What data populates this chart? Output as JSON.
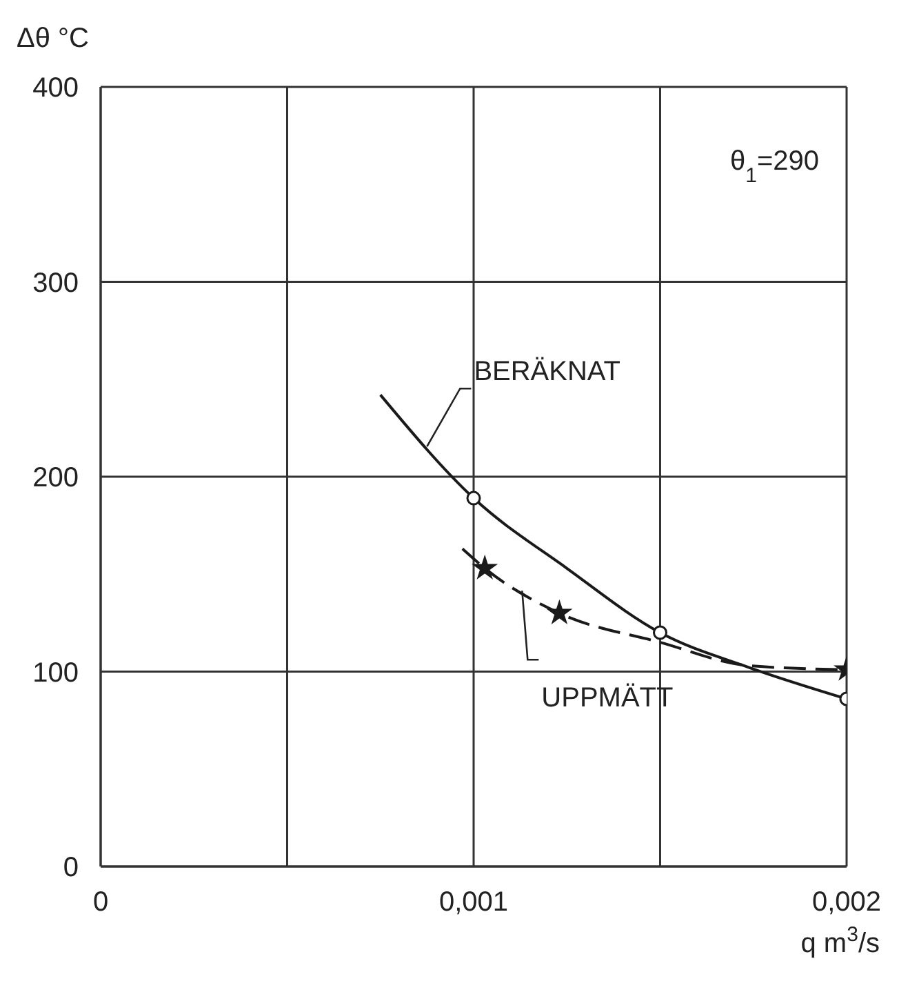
{
  "chart_data": {
    "type": "line",
    "xlabel": "q m$^{3}$/s",
    "ylabel": "Δθ °C",
    "annotations": [
      "θ$_{1}$=290"
    ],
    "xlim": [
      0,
      0.002
    ],
    "xticks": [
      {
        "value": 0,
        "label": "0"
      },
      {
        "value": 0.0005,
        "label": null
      },
      {
        "value": 0.001,
        "label": "0,001"
      },
      {
        "value": 0.0015,
        "label": null
      },
      {
        "value": 0.002,
        "label": "0,002"
      }
    ],
    "ylim": [
      0,
      400
    ],
    "yticks": [
      0,
      100,
      200,
      300,
      400
    ],
    "grid": true,
    "series": [
      {
        "name": "BERÄKNAT",
        "color": "#1a1a1a",
        "marker": "none",
        "line_style": "solid",
        "x": [
          0.00075,
          0.001,
          0.00125,
          0.0015,
          0.00174,
          0.002
        ],
        "values": [
          242,
          189,
          153,
          120,
          102,
          86
        ]
      },
      {
        "name": "UPPMÄTT",
        "color": "#1a1a1a",
        "marker": "none",
        "line_style": "dashed",
        "x": [
          0.00097,
          0.00103,
          0.00123,
          0.0015,
          0.00174,
          0.002
        ],
        "values": [
          163,
          153,
          130,
          115,
          103,
          101
        ]
      },
      {
        "type": "scatter",
        "color": "#1a1a1a",
        "marker": "circle",
        "x": [
          0.001,
          0.0015,
          0.002
        ],
        "values": [
          189,
          120,
          86
        ]
      },
      {
        "type": "scatter",
        "color": "#1a1a1a",
        "marker": "star",
        "x": [
          0.00103,
          0.00123,
          0.002
        ],
        "values": [
          153,
          130,
          101
        ]
      }
    ]
  }
}
